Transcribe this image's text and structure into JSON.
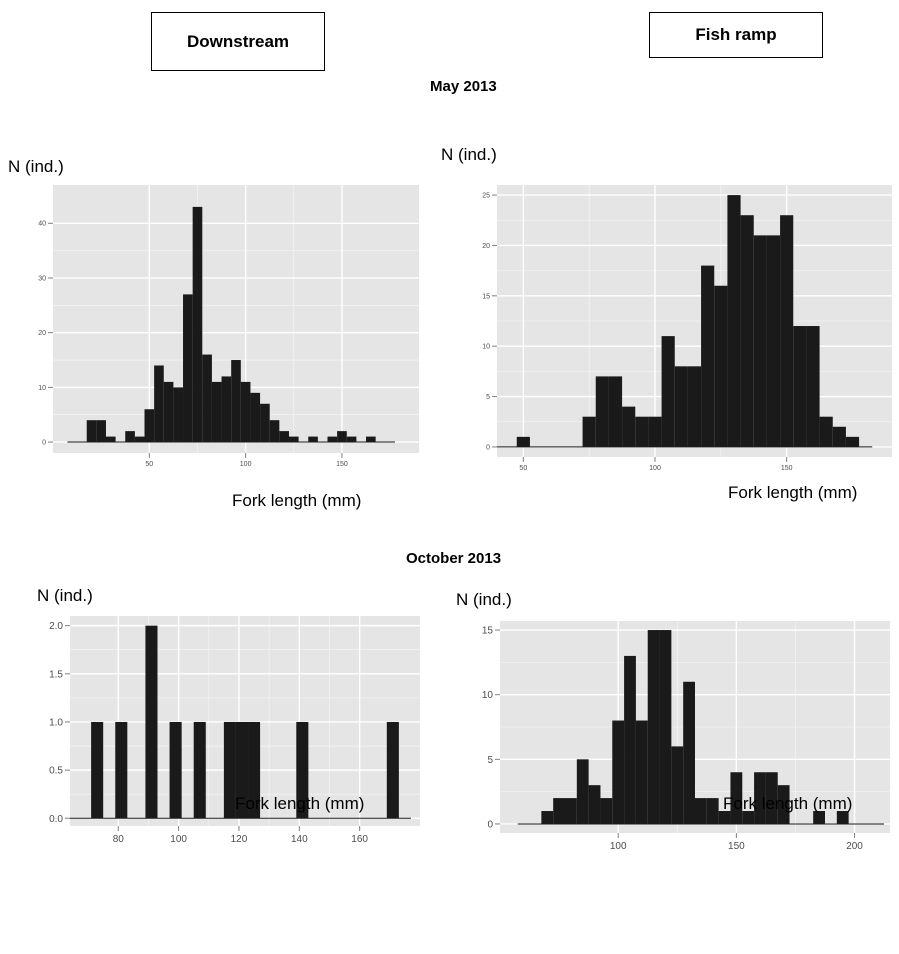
{
  "headers": {
    "left": "Downstream",
    "right": "Fish ramp"
  },
  "sections": {
    "top": "May 2013",
    "bottom": "October 2013"
  },
  "panel_labels": {
    "y": "N (ind.)",
    "x": "Fork length (mm)"
  },
  "colors": {
    "bar": "#1a1a1a",
    "panel_bg": "#e5e5e5",
    "grid": "#ffffff"
  },
  "chart_data": [
    {
      "panel": "Downstream, May 2013",
      "type": "bar",
      "xlabel": "Fork length (mm)",
      "ylabel": "N (ind.)",
      "xlim": [
        0,
        190
      ],
      "ylim": [
        -2,
        47
      ],
      "binwidth": 5,
      "xticks": [
        50,
        100,
        150
      ],
      "yticks": [
        0,
        10,
        20,
        30,
        40
      ],
      "x": [
        20,
        25,
        30,
        35,
        40,
        45,
        50,
        55,
        60,
        65,
        70,
        75,
        80,
        85,
        90,
        95,
        100,
        105,
        110,
        115,
        120,
        125,
        130,
        135,
        140,
        145,
        150,
        155,
        160,
        165,
        170
      ],
      "values": [
        4,
        4,
        1,
        0,
        2,
        1,
        6,
        14,
        11,
        10,
        27,
        43,
        16,
        11,
        12,
        15,
        11,
        9,
        7,
        4,
        2,
        1,
        0,
        1,
        0,
        1,
        2,
        1,
        0,
        1,
        0
      ]
    },
    {
      "panel": "Fish ramp, May 2013",
      "type": "bar",
      "xlabel": "Fork length (mm)",
      "ylabel": "N (ind.)",
      "xlim": [
        40,
        190
      ],
      "ylim": [
        -1,
        26
      ],
      "binwidth": 5,
      "xticks": [
        50,
        100,
        150
      ],
      "yticks": [
        0,
        5,
        10,
        15,
        20,
        25
      ],
      "x": [
        50,
        55,
        60,
        65,
        70,
        75,
        80,
        85,
        90,
        95,
        100,
        105,
        110,
        115,
        120,
        125,
        130,
        135,
        140,
        145,
        150,
        155,
        160,
        165,
        170,
        175
      ],
      "values": [
        1,
        0,
        0,
        0,
        0,
        3,
        7,
        7,
        4,
        3,
        3,
        11,
        8,
        8,
        18,
        16,
        25,
        23,
        21,
        21,
        23,
        12,
        12,
        3,
        2,
        1
      ]
    },
    {
      "panel": "Downstream, October 2013",
      "type": "bar",
      "xlabel": "Fork length (mm)",
      "ylabel": "N (ind.)",
      "xlim": [
        64,
        180
      ],
      "ylim": [
        -0.08,
        2.1
      ],
      "binwidth": 4,
      "xticks": [
        80,
        100,
        120,
        140,
        160
      ],
      "yticks": [
        0.0,
        0.5,
        1.0,
        1.5,
        2.0
      ],
      "x": [
        73,
        81,
        91,
        99,
        107,
        117,
        121,
        125,
        141,
        171
      ],
      "values": [
        1,
        1,
        2,
        1,
        1,
        1,
        1,
        1,
        1,
        1
      ]
    },
    {
      "panel": "Fish ramp, October 2013",
      "type": "bar",
      "xlabel": "Fork length (mm)",
      "ylabel": "N (ind.)",
      "xlim": [
        50,
        215
      ],
      "ylim": [
        -0.7,
        15.7
      ],
      "binwidth": 5,
      "xticks": [
        100,
        150,
        200
      ],
      "yticks": [
        0,
        5,
        10,
        15
      ],
      "x": [
        70,
        75,
        80,
        85,
        90,
        95,
        100,
        105,
        110,
        115,
        120,
        125,
        130,
        135,
        140,
        145,
        150,
        155,
        160,
        165,
        170,
        175,
        180,
        185,
        190,
        195,
        200,
        205
      ],
      "values": [
        1,
        2,
        2,
        5,
        3,
        2,
        8,
        13,
        8,
        15,
        15,
        6,
        11,
        2,
        2,
        1,
        4,
        1,
        4,
        4,
        3,
        0,
        0,
        1,
        0,
        1,
        0,
        0
      ]
    }
  ]
}
